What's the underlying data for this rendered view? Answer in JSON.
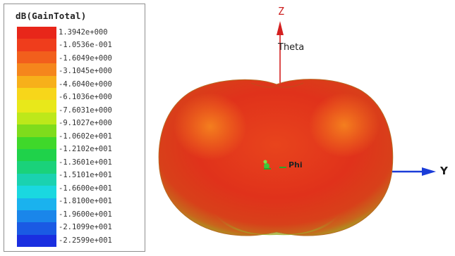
{
  "legend": {
    "title": "dB(GainTotal)",
    "colors": [
      "#e8261a",
      "#ef3d1c",
      "#f25f1c",
      "#f5861c",
      "#f7b01a",
      "#f7d61a",
      "#e8e81a",
      "#bde81a",
      "#7fdc1c",
      "#3fd82a",
      "#1fd24a",
      "#1ad27a",
      "#1ad2b0",
      "#1ad8e0",
      "#1ab2ee",
      "#1a86ea",
      "#1a5ae4",
      "#1a2ee0"
    ],
    "ticks": [
      "1.3942e+000",
      "-1.0536e-001",
      "-1.6049e+000",
      "-3.1045e+000",
      "-4.6040e+000",
      "-6.1036e+000",
      "-7.6031e+000",
      "-9.1027e+000",
      "-1.0602e+001",
      "-1.2102e+001",
      "-1.3601e+001",
      "-1.5101e+001",
      "-1.6600e+001",
      "-1.8100e+001",
      "-1.9600e+001",
      "-2.1099e+001",
      "-2.2599e+001"
    ]
  },
  "axes": {
    "z_label": "Z",
    "theta_label": "Theta",
    "phi_label": "Phi",
    "y_label": "Y",
    "z_color": "#d42020",
    "y_color": "#1a3cd8",
    "phi_color": "#22aa22"
  },
  "pattern": {
    "body_color": "#e03a1c",
    "highlight_color": "#f3761e",
    "edge_color": "#9aa82a"
  }
}
